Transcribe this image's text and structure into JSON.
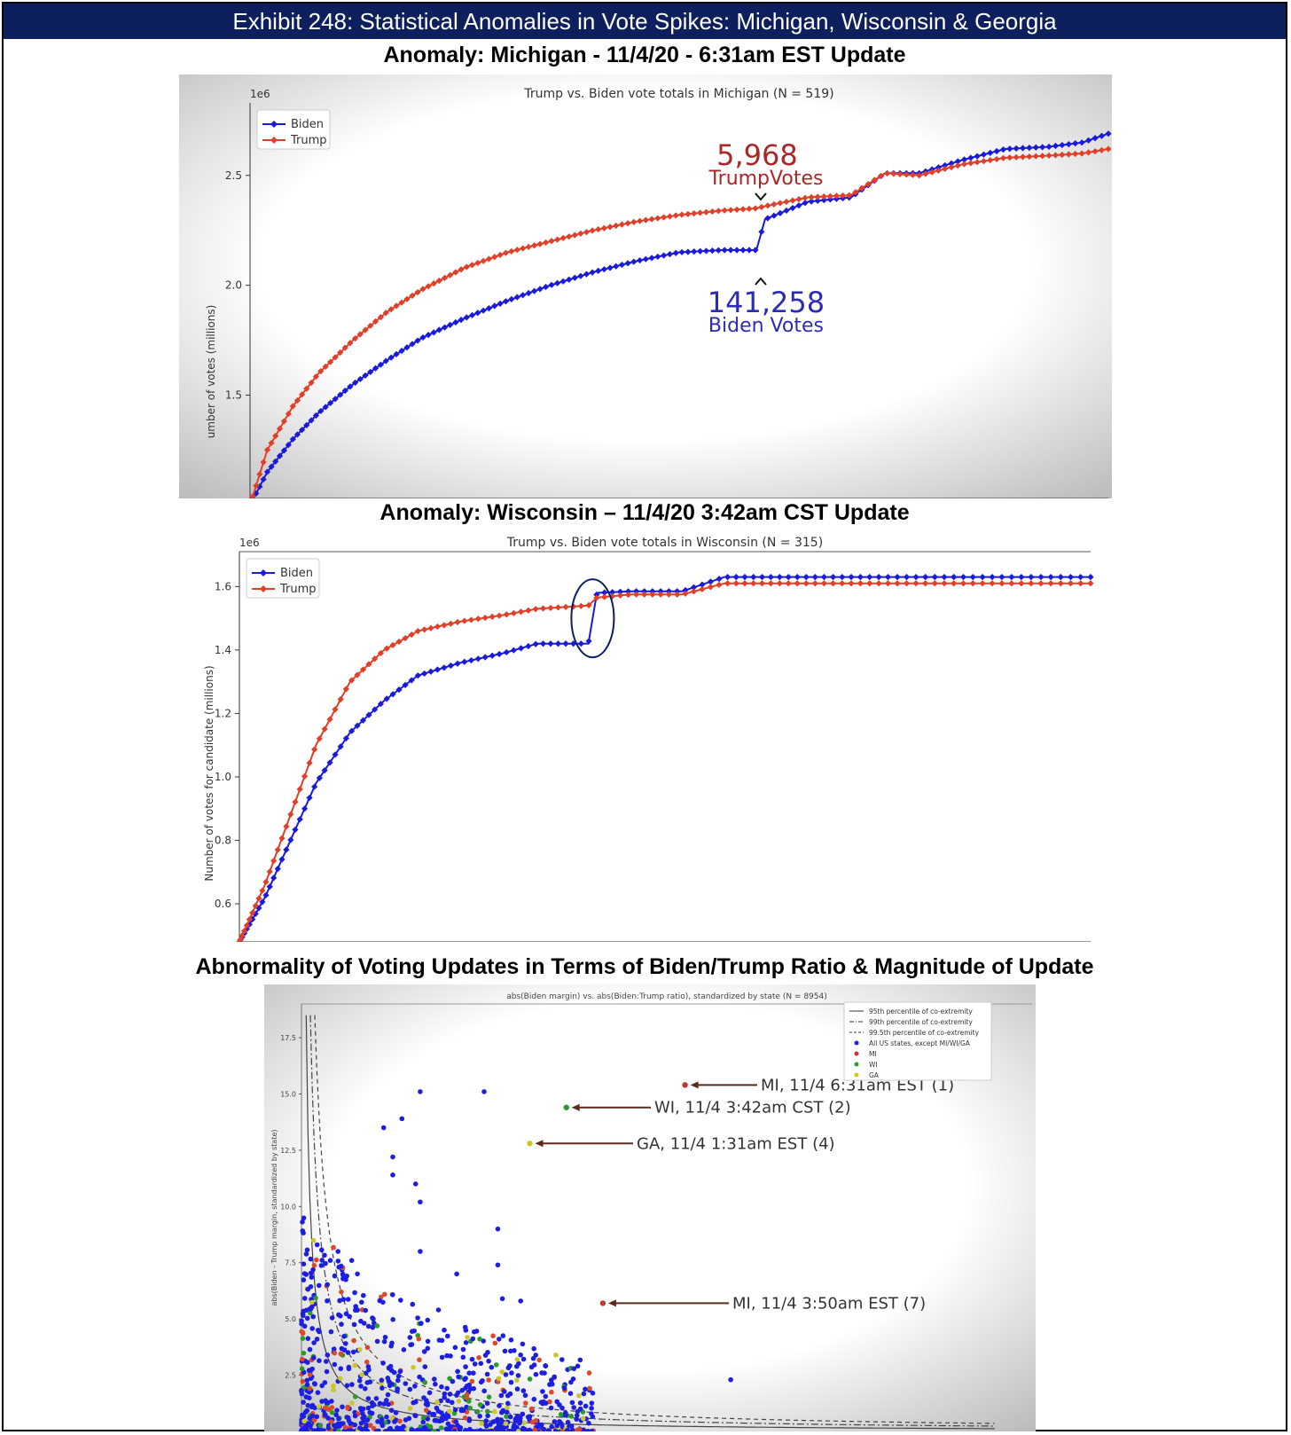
{
  "banner": {
    "title": "Exhibit 248: Statistical Anomalies in Vote Spikes: Michigan, Wisconsin & Georgia"
  },
  "sections": {
    "michigan": "Anomaly: Michigan - 11/4/20 - 6:31am EST Update",
    "wisconsin": "Anomaly: Wisconsin – 11/4/20 3:42am CST Update",
    "scatter": "Abnormality of Voting Updates in Terms of Biden/Trump Ratio & Magnitude of Update"
  },
  "colors": {
    "biden": "#1a1adb",
    "trump": "#e0402a",
    "banner": "#0d1f5c",
    "annot_red": "#a82828",
    "annot_blue": "#2b2bb8",
    "arrow": "#5a2a1a"
  },
  "chart_data": [
    {
      "type": "line",
      "title": "Trump vs. Biden vote totals in Michigan (N = 519)",
      "ylabel": "umber of votes (millions)",
      "offset_label": "1e6",
      "ylim": [
        1.03,
        2.83
      ],
      "yticks": [
        "1.5",
        "2.0",
        "2.5"
      ],
      "legend": [
        "Biden",
        "Trump"
      ],
      "legend_position": "top-left",
      "x": [
        0.0,
        0.02,
        0.05,
        0.08,
        0.12,
        0.16,
        0.2,
        0.25,
        0.3,
        0.35,
        0.4,
        0.45,
        0.5,
        0.55,
        0.59,
        0.6,
        0.65,
        0.7,
        0.74,
        0.78,
        0.83,
        0.88,
        0.93,
        0.97,
        1.0
      ],
      "series": [
        {
          "name": "Biden",
          "values": [
            1.0,
            1.15,
            1.3,
            1.42,
            1.55,
            1.66,
            1.76,
            1.85,
            1.93,
            2.0,
            2.06,
            2.11,
            2.15,
            2.16,
            2.16,
            2.3,
            2.38,
            2.4,
            2.51,
            2.51,
            2.57,
            2.62,
            2.63,
            2.65,
            2.69
          ]
        },
        {
          "name": "Trump",
          "values": [
            1.0,
            1.25,
            1.45,
            1.6,
            1.75,
            1.88,
            1.98,
            2.08,
            2.15,
            2.2,
            2.25,
            2.29,
            2.32,
            2.34,
            2.35,
            2.36,
            2.4,
            2.41,
            2.51,
            2.5,
            2.55,
            2.58,
            2.59,
            2.6,
            2.62
          ]
        }
      ],
      "annotations": [
        {
          "number": "5,968",
          "label": "TrumpVotes"
        },
        {
          "number": "141,258",
          "label": "Biden Votes"
        }
      ]
    },
    {
      "type": "line",
      "title": "Trump vs. Biden vote totals in Wisconsin (N = 315)",
      "ylabel": "Number of votes for candidate (millions)",
      "offset_label": "1e6",
      "ylim": [
        0.48,
        1.71
      ],
      "yticks": [
        "0.6",
        "0.8",
        "1.0",
        "1.2",
        "1.4",
        "1.6"
      ],
      "legend": [
        "Biden",
        "Trump"
      ],
      "legend_position": "top-left",
      "x": [
        0.0,
        0.03,
        0.06,
        0.09,
        0.13,
        0.17,
        0.21,
        0.26,
        0.31,
        0.35,
        0.38,
        0.41,
        0.42,
        0.46,
        0.52,
        0.57,
        1.0
      ],
      "series": [
        {
          "name": "Biden",
          "values": [
            0.48,
            0.62,
            0.8,
            0.98,
            1.14,
            1.24,
            1.32,
            1.36,
            1.39,
            1.42,
            1.42,
            1.42,
            1.58,
            1.585,
            1.585,
            1.63,
            1.63
          ]
        },
        {
          "name": "Trump",
          "values": [
            0.48,
            0.66,
            0.88,
            1.1,
            1.3,
            1.4,
            1.46,
            1.49,
            1.51,
            1.53,
            1.535,
            1.54,
            1.565,
            1.575,
            1.575,
            1.61,
            1.61
          ]
        }
      ]
    },
    {
      "type": "scatter",
      "title": "abs(Biden margin) vs. abs(Biden:Trump ratio), standardized by state (N = 8954)",
      "ylabel": "abs(Biden - Trump margin, standardized by state)",
      "ylim": [
        0,
        19
      ],
      "yticks": [
        "2.5",
        "5.0",
        "7.5",
        "10.0",
        "12.5",
        "15.0",
        "17.5"
      ],
      "legend": [
        "95th percentile of co-extremity",
        "99th percentile of co-extremity",
        "99.5th percentile of co-extremity",
        "All US states, except MI/WI/GA",
        "MI",
        "WI",
        "GA"
      ],
      "legend_position": "top-right",
      "highlighted_points": [
        {
          "group": "MI",
          "x": 4.2,
          "y": 15.4
        },
        {
          "group": "WI",
          "x": 2.9,
          "y": 14.4
        },
        {
          "group": "GA",
          "x": 2.5,
          "y": 12.8
        },
        {
          "group": "MI",
          "x": 3.3,
          "y": 5.7
        }
      ],
      "callouts": [
        "MI, 11/4 6:31am EST (1)",
        "WI, 11/4 3:42am CST (2)",
        "GA, 11/4 1:31am EST (4)",
        "MI, 11/4 3:50am EST (7)"
      ]
    }
  ]
}
